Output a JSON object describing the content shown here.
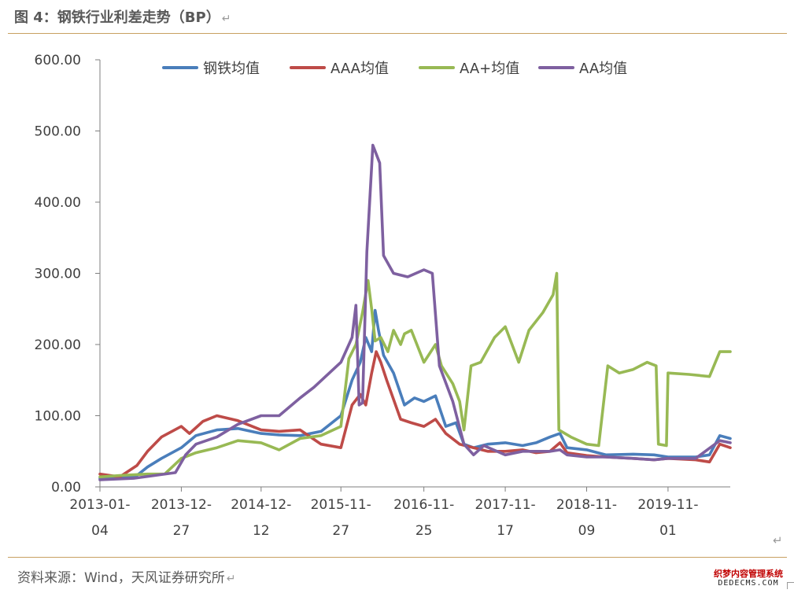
{
  "header": {
    "title": "图 4：钢铁行业利差走势（BP）",
    "return_mark": "↵"
  },
  "footer": {
    "source": "资料来源：Wind，天风证券研究所",
    "return_mark": "↵",
    "corner_mark": "↵"
  },
  "watermark": {
    "line1": "织梦内容管理系统",
    "line2": "DEDECMS.COM"
  },
  "chart_data": {
    "type": "line",
    "title": "",
    "xlabel": "",
    "ylabel": "",
    "ylim": [
      0,
      600
    ],
    "yticks": [
      0,
      100,
      200,
      300,
      400,
      500,
      600
    ],
    "ytick_labels": [
      "0.00",
      "100.00",
      "200.00",
      "300.00",
      "400.00",
      "500.00",
      "600.00"
    ],
    "x_range": [
      "2013-01-04",
      "2020-07-31"
    ],
    "xticks": [
      {
        "date": "2013-01-04",
        "l1": "2013-01-",
        "l2": "04"
      },
      {
        "date": "2013-12-27",
        "l1": "2013-12-",
        "l2": "27"
      },
      {
        "date": "2014-12-12",
        "l1": "2014-12-",
        "l2": "12"
      },
      {
        "date": "2015-11-27",
        "l1": "2015-11-",
        "l2": "27"
      },
      {
        "date": "2016-11-25",
        "l1": "2016-11-",
        "l2": "25"
      },
      {
        "date": "2017-11-17",
        "l1": "2017-11-",
        "l2": "17"
      },
      {
        "date": "2018-11-09",
        "l1": "2018-11-",
        "l2": "09"
      },
      {
        "date": "2019-11-01",
        "l1": "2019-11-",
        "l2": "01"
      }
    ],
    "legend_position": "top",
    "series": [
      {
        "name": "钢铁均值",
        "color": "#4a7ebb",
        "points": [
          [
            "2013-01-04",
            12
          ],
          [
            "2013-04-01",
            12
          ],
          [
            "2013-06-15",
            16
          ],
          [
            "2013-08-01",
            28
          ],
          [
            "2013-10-01",
            40
          ],
          [
            "2013-12-27",
            55
          ],
          [
            "2014-03-01",
            72
          ],
          [
            "2014-06-01",
            80
          ],
          [
            "2014-09-01",
            82
          ],
          [
            "2014-12-12",
            75
          ],
          [
            "2015-03-01",
            73
          ],
          [
            "2015-06-01",
            72
          ],
          [
            "2015-09-01",
            78
          ],
          [
            "2015-11-27",
            100
          ],
          [
            "2016-01-15",
            150
          ],
          [
            "2016-02-20",
            175
          ],
          [
            "2016-03-15",
            210
          ],
          [
            "2016-04-10",
            190
          ],
          [
            "2016-04-25",
            248
          ],
          [
            "2016-05-10",
            220
          ],
          [
            "2016-06-01",
            185
          ],
          [
            "2016-07-15",
            160
          ],
          [
            "2016-09-01",
            115
          ],
          [
            "2016-10-15",
            125
          ],
          [
            "2016-11-25",
            120
          ],
          [
            "2017-01-15",
            128
          ],
          [
            "2017-03-01",
            85
          ],
          [
            "2017-04-15",
            90
          ],
          [
            "2017-05-20",
            60
          ],
          [
            "2017-07-01",
            55
          ],
          [
            "2017-09-01",
            60
          ],
          [
            "2017-11-17",
            62
          ],
          [
            "2018-02-01",
            58
          ],
          [
            "2018-04-01",
            62
          ],
          [
            "2018-06-01",
            70
          ],
          [
            "2018-07-15",
            75
          ],
          [
            "2018-08-15",
            55
          ],
          [
            "2018-11-09",
            52
          ],
          [
            "2019-02-01",
            45
          ],
          [
            "2019-06-01",
            46
          ],
          [
            "2019-09-01",
            45
          ],
          [
            "2019-11-01",
            42
          ],
          [
            "2020-03-01",
            42
          ],
          [
            "2020-05-01",
            45
          ],
          [
            "2020-06-15",
            72
          ],
          [
            "2020-07-31",
            68
          ]
        ]
      },
      {
        "name": "AAA均值",
        "color": "#be4b48",
        "points": [
          [
            "2013-01-04",
            18
          ],
          [
            "2013-04-01",
            14
          ],
          [
            "2013-06-15",
            30
          ],
          [
            "2013-08-01",
            50
          ],
          [
            "2013-10-01",
            70
          ],
          [
            "2013-12-27",
            85
          ],
          [
            "2014-02-01",
            75
          ],
          [
            "2014-04-01",
            92
          ],
          [
            "2014-06-01",
            100
          ],
          [
            "2014-09-01",
            93
          ],
          [
            "2014-12-12",
            80
          ],
          [
            "2015-03-01",
            78
          ],
          [
            "2015-06-01",
            80
          ],
          [
            "2015-09-01",
            60
          ],
          [
            "2015-11-27",
            55
          ],
          [
            "2016-01-15",
            115
          ],
          [
            "2016-02-20",
            130
          ],
          [
            "2016-03-15",
            115
          ],
          [
            "2016-04-10",
            160
          ],
          [
            "2016-04-30",
            190
          ],
          [
            "2016-05-20",
            175
          ],
          [
            "2016-06-15",
            150
          ],
          [
            "2016-08-15",
            95
          ],
          [
            "2016-10-01",
            90
          ],
          [
            "2016-11-25",
            85
          ],
          [
            "2017-01-15",
            95
          ],
          [
            "2017-03-01",
            75
          ],
          [
            "2017-05-01",
            60
          ],
          [
            "2017-07-01",
            55
          ],
          [
            "2017-09-01",
            50
          ],
          [
            "2017-11-17",
            50
          ],
          [
            "2018-02-01",
            52
          ],
          [
            "2018-04-01",
            48
          ],
          [
            "2018-06-01",
            50
          ],
          [
            "2018-07-15",
            62
          ],
          [
            "2018-08-15",
            48
          ],
          [
            "2018-11-09",
            44
          ],
          [
            "2019-02-01",
            42
          ],
          [
            "2019-06-01",
            40
          ],
          [
            "2019-09-01",
            38
          ],
          [
            "2019-11-01",
            40
          ],
          [
            "2020-03-01",
            38
          ],
          [
            "2020-05-01",
            35
          ],
          [
            "2020-06-15",
            60
          ],
          [
            "2020-07-31",
            55
          ]
        ]
      },
      {
        "name": "AA+均值",
        "color": "#98b954",
        "points": [
          [
            "2013-01-04",
            14
          ],
          [
            "2013-04-01",
            16
          ],
          [
            "2013-08-01",
            18
          ],
          [
            "2013-10-15",
            18
          ],
          [
            "2013-12-27",
            40
          ],
          [
            "2014-03-01",
            48
          ],
          [
            "2014-06-01",
            55
          ],
          [
            "2014-09-01",
            65
          ],
          [
            "2014-12-12",
            62
          ],
          [
            "2015-03-01",
            52
          ],
          [
            "2015-06-01",
            68
          ],
          [
            "2015-09-01",
            72
          ],
          [
            "2015-11-27",
            85
          ],
          [
            "2016-01-01",
            180
          ],
          [
            "2016-02-01",
            200
          ],
          [
            "2016-03-01",
            245
          ],
          [
            "2016-03-25",
            290
          ],
          [
            "2016-04-10",
            250
          ],
          [
            "2016-04-25",
            205
          ],
          [
            "2016-05-20",
            210
          ],
          [
            "2016-06-20",
            190
          ],
          [
            "2016-07-15",
            220
          ],
          [
            "2016-08-15",
            200
          ],
          [
            "2016-09-01",
            215
          ],
          [
            "2016-10-01",
            220
          ],
          [
            "2016-11-25",
            175
          ],
          [
            "2017-01-15",
            200
          ],
          [
            "2017-02-10",
            170
          ],
          [
            "2017-04-01",
            145
          ],
          [
            "2017-05-01",
            120
          ],
          [
            "2017-05-20",
            80
          ],
          [
            "2017-06-20",
            170
          ],
          [
            "2017-08-01",
            175
          ],
          [
            "2017-10-01",
            210
          ],
          [
            "2017-11-17",
            225
          ],
          [
            "2018-01-15",
            175
          ],
          [
            "2018-03-01",
            220
          ],
          [
            "2018-05-01",
            245
          ],
          [
            "2018-06-15",
            270
          ],
          [
            "2018-07-01",
            300
          ],
          [
            "2018-07-10",
            80
          ],
          [
            "2018-09-01",
            70
          ],
          [
            "2018-11-09",
            60
          ],
          [
            "2019-01-01",
            58
          ],
          [
            "2019-02-10",
            170
          ],
          [
            "2019-04-01",
            160
          ],
          [
            "2019-06-01",
            165
          ],
          [
            "2019-08-01",
            175
          ],
          [
            "2019-09-10",
            170
          ],
          [
            "2019-09-20",
            60
          ],
          [
            "2019-10-25",
            58
          ],
          [
            "2019-11-01",
            160
          ],
          [
            "2020-02-01",
            158
          ],
          [
            "2020-05-01",
            155
          ],
          [
            "2020-06-15",
            190
          ],
          [
            "2020-07-31",
            190
          ]
        ]
      },
      {
        "name": "AA均值",
        "color": "#7e60a0",
        "points": [
          [
            "2013-01-04",
            10
          ],
          [
            "2013-06-01",
            12
          ],
          [
            "2013-09-01",
            16
          ],
          [
            "2013-12-01",
            20
          ],
          [
            "2014-01-15",
            45
          ],
          [
            "2014-03-01",
            60
          ],
          [
            "2014-06-01",
            70
          ],
          [
            "2014-09-01",
            88
          ],
          [
            "2014-12-12",
            100
          ],
          [
            "2015-03-01",
            100
          ],
          [
            "2015-06-01",
            125
          ],
          [
            "2015-08-01",
            140
          ],
          [
            "2015-11-27",
            175
          ],
          [
            "2016-01-15",
            210
          ],
          [
            "2016-02-01",
            255
          ],
          [
            "2016-02-15",
            115
          ],
          [
            "2016-03-01",
            118
          ],
          [
            "2016-03-20",
            330
          ],
          [
            "2016-04-15",
            480
          ],
          [
            "2016-05-15",
            455
          ],
          [
            "2016-06-01",
            325
          ],
          [
            "2016-07-15",
            300
          ],
          [
            "2016-09-15",
            295
          ],
          [
            "2016-11-25",
            305
          ],
          [
            "2017-01-01",
            300
          ],
          [
            "2017-02-01",
            170
          ],
          [
            "2017-04-01",
            120
          ],
          [
            "2017-05-20",
            60
          ],
          [
            "2017-07-01",
            45
          ],
          [
            "2017-08-15",
            58
          ],
          [
            "2017-11-17",
            45
          ],
          [
            "2018-02-01",
            50
          ],
          [
            "2018-06-01",
            50
          ],
          [
            "2018-07-15",
            52
          ],
          [
            "2018-08-15",
            45
          ],
          [
            "2018-11-09",
            42
          ],
          [
            "2019-02-01",
            42
          ],
          [
            "2019-06-01",
            40
          ],
          [
            "2019-09-01",
            38
          ],
          [
            "2019-11-01",
            40
          ],
          [
            "2020-03-01",
            40
          ],
          [
            "2020-06-15",
            65
          ],
          [
            "2020-07-31",
            62
          ]
        ]
      }
    ]
  }
}
